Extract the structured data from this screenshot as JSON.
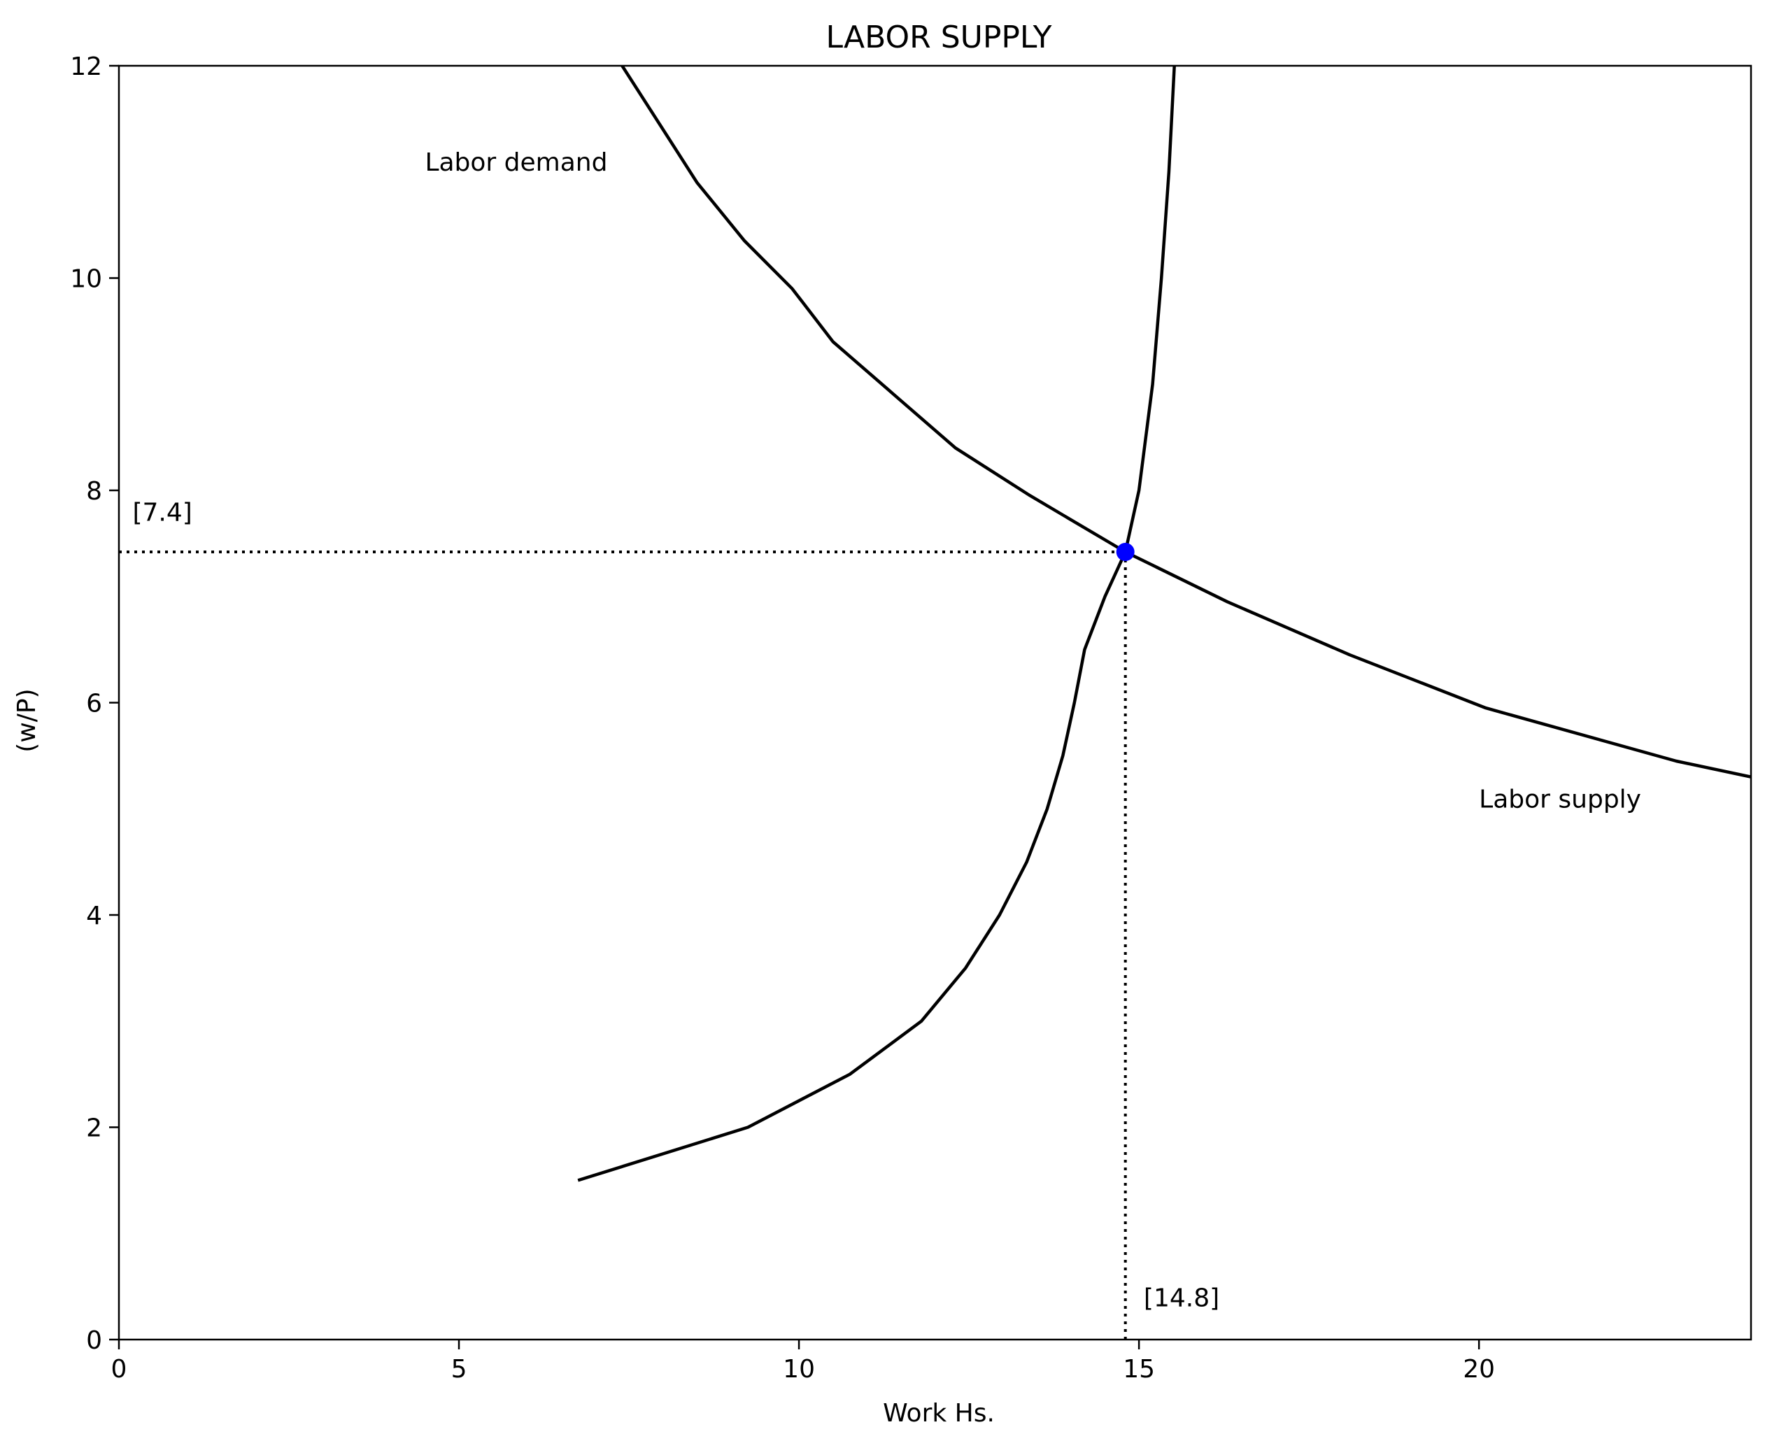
{
  "chart_data": {
    "type": "line",
    "title": "LABOR SUPPLY",
    "xlabel": "Work Hs.",
    "ylabel": "(w/P)",
    "xlim": [
      0,
      24
    ],
    "ylim": [
      0,
      12
    ],
    "xticks": [
      0,
      5,
      10,
      15,
      20
    ],
    "yticks": [
      0,
      2,
      4,
      6,
      8,
      10,
      12
    ],
    "grid": false,
    "legend": "none",
    "series": [
      {
        "name": "Labor demand",
        "color": "#000000",
        "points": [
          [
            7.4,
            12.0
          ],
          [
            8.0,
            11.4
          ],
          [
            8.5,
            10.9
          ],
          [
            9.2,
            10.35
          ],
          [
            9.9,
            9.9
          ],
          [
            10.5,
            9.4
          ],
          [
            11.4,
            8.9
          ],
          [
            12.3,
            8.4
          ],
          [
            13.4,
            7.95
          ],
          [
            14.8,
            7.42
          ],
          [
            16.3,
            6.95
          ],
          [
            18.1,
            6.45
          ],
          [
            20.1,
            5.95
          ],
          [
            22.9,
            5.45
          ],
          [
            24.0,
            5.3
          ]
        ]
      },
      {
        "name": "Labor supply",
        "color": "#000000",
        "points": [
          [
            6.75,
            1.5
          ],
          [
            9.25,
            2.0
          ],
          [
            10.75,
            2.5
          ],
          [
            11.8,
            3.0
          ],
          [
            12.45,
            3.5
          ],
          [
            12.95,
            4.0
          ],
          [
            13.35,
            4.5
          ],
          [
            13.65,
            5.0
          ],
          [
            13.88,
            5.5
          ],
          [
            14.05,
            6.0
          ],
          [
            14.2,
            6.5
          ],
          [
            14.5,
            7.0
          ],
          [
            14.8,
            7.42
          ],
          [
            15.0,
            8.0
          ],
          [
            15.2,
            9.0
          ],
          [
            15.33,
            10.0
          ],
          [
            15.44,
            11.0
          ],
          [
            15.52,
            12.0
          ]
        ]
      }
    ],
    "equilibrium": {
      "x": 14.8,
      "y": 7.42,
      "color": "#0000ff"
    },
    "annotations": [
      {
        "text": "Labor demand",
        "x": 4.5,
        "y": 11.0
      },
      {
        "text": "Labor supply",
        "x": 20.0,
        "y": 5.0
      },
      {
        "text": "[7.4]",
        "x": 0.2,
        "y": 7.7
      },
      {
        "text": "[14.8]",
        "x": 15.07,
        "y": 0.3
      }
    ]
  }
}
